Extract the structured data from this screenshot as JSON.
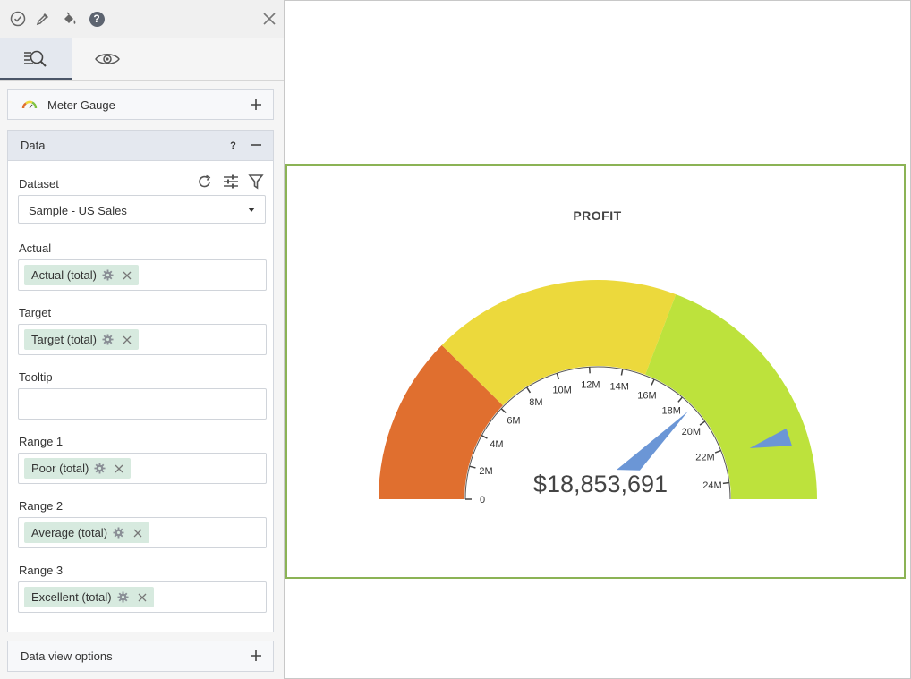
{
  "toolbar": {
    "icons": [
      "check-circle-icon",
      "eyedropper-icon",
      "paint-bucket-icon",
      "help-icon"
    ],
    "help_label": "?",
    "close_icon": "close-icon"
  },
  "tabs": [
    {
      "name": "data-tab",
      "icon": "data-search-icon",
      "active": true
    },
    {
      "name": "view-tab",
      "icon": "eye-icon",
      "active": false
    }
  ],
  "widget_section": {
    "label": "Meter Gauge",
    "icon": "meter-gauge-icon"
  },
  "data_section": {
    "label": "Data",
    "help_label": "?",
    "dataset_label": "Dataset",
    "dataset_value": "Sample - US Sales",
    "fields": [
      {
        "label": "Actual",
        "chip": "Actual (total)"
      },
      {
        "label": "Target",
        "chip": "Target (total)"
      },
      {
        "label": "Tooltip",
        "chip": ""
      },
      {
        "label": "Range 1",
        "chip": "Poor (total)"
      },
      {
        "label": "Range 2",
        "chip": "Average (total)"
      },
      {
        "label": "Range 3",
        "chip": "Excellent (total)"
      }
    ]
  },
  "options_section": {
    "label": "Data view options"
  },
  "chart_data": {
    "type": "gauge",
    "title": "PROFIT",
    "value": 18853691,
    "value_label": "$18,853,691",
    "target": 22500000,
    "min": 0,
    "max": 25000000,
    "ticks": [
      0,
      2000000,
      4000000,
      6000000,
      8000000,
      10000000,
      12000000,
      14000000,
      16000000,
      18000000,
      20000000,
      22000000,
      24000000
    ],
    "tick_labels": [
      "0",
      "2M",
      "4M",
      "6M",
      "8M",
      "10M",
      "12M",
      "14M",
      "16M",
      "18M",
      "20M",
      "22M",
      "24M"
    ],
    "ranges": [
      {
        "name": "Poor",
        "from": 0,
        "to": 6200000,
        "color": "#e06f2f"
      },
      {
        "name": "Average",
        "from": 6200000,
        "to": 15400000,
        "color": "#ecd93c"
      },
      {
        "name": "Excellent",
        "from": 15400000,
        "to": 25000000,
        "color": "#bde23c"
      }
    ],
    "needle_color": "#6b96d6",
    "target_color": "#6b96d6"
  }
}
